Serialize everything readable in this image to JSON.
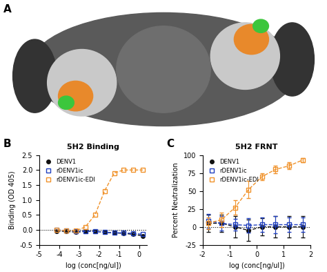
{
  "panel_labels": [
    "A",
    "B",
    "C"
  ],
  "chart_data": [
    {
      "type": "line",
      "title": "5H2 Binding",
      "x_label": "log (conc[ng/ul])",
      "y_label": "Binding (OD 405)",
      "x": [
        -4.12,
        -3.64,
        -3.16,
        -2.69,
        -2.21,
        -1.73,
        -1.25,
        -0.78,
        -0.3,
        0.18
      ],
      "xlim": [
        -5,
        0.4
      ],
      "xticks": [
        -5,
        -4,
        -3,
        -2,
        -1,
        0
      ],
      "ylim": [
        -0.5,
        2.5
      ],
      "yticks": [
        {
          "value": -0.5,
          "label": "-0.5"
        },
        {
          "value": 0,
          "label": "0.0"
        },
        {
          "value": 0.5,
          "label": "0.5"
        },
        {
          "value": 1,
          "label": "1.0"
        },
        {
          "value": 1.5,
          "label": "1.5"
        },
        {
          "value": 2,
          "label": "2.0"
        },
        {
          "value": 2.5,
          "label": "2.5"
        }
      ],
      "hline": 0,
      "legend": "upper left",
      "series": [
        {
          "name": "DENV1",
          "color": "#111111",
          "marker": "filled_circle",
          "line_style": "dashed",
          "values": [
            -0.05,
            -0.05,
            -0.08,
            -0.05,
            -0.05,
            -0.08,
            -0.1,
            -0.12,
            -0.15,
            -0.2
          ]
        },
        {
          "name": "rDENV1ic",
          "color": "#1f3fbf",
          "marker": "open_square",
          "line_style": "dashed",
          "values": [
            0.0,
            -0.03,
            -0.05,
            -0.05,
            -0.05,
            -0.08,
            -0.1,
            -0.1,
            -0.12,
            -0.15
          ]
        },
        {
          "name": "rDENV1ic-EDI",
          "color": "#f0922a",
          "marker": "open_square",
          "line_style": "dashed",
          "values": [
            0.0,
            -0.03,
            -0.03,
            0.1,
            0.5,
            1.3,
            1.9,
            2.0,
            2.0,
            2.0
          ]
        }
      ]
    },
    {
      "type": "line",
      "title": "5H2 FRNT",
      "x_label": "log (conc[ng/ul])",
      "y_label": "Percent Neutralization",
      "x": [
        -1.8,
        -1.3,
        -0.8,
        -0.3,
        0.2,
        0.7,
        1.2,
        1.7
      ],
      "xlim": [
        -2,
        2
      ],
      "xticks": [
        -2,
        -1,
        0,
        1,
        2
      ],
      "ylim": [
        -25,
        100
      ],
      "yticks": [
        -25,
        0,
        25,
        50,
        75,
        100
      ],
      "hline": 0,
      "legend": "upper left",
      "series": [
        {
          "name": "DENV1",
          "color": "#111111",
          "marker": "filled_circle",
          "line_style": "dashed",
          "values": [
            5,
            5,
            0,
            -5,
            0,
            0,
            0,
            0
          ],
          "error": [
            12,
            12,
            15,
            15,
            12,
            15,
            15,
            15
          ]
        },
        {
          "name": "rDENV1ic",
          "color": "#1f3fbf",
          "marker": "open_square",
          "line_style": "dashed",
          "values": [
            8,
            5,
            3,
            2,
            3,
            3,
            3,
            3
          ],
          "error": [
            10,
            10,
            8,
            10,
            10,
            12,
            10,
            10
          ]
        },
        {
          "name": "rDENV1ic-EDI",
          "color": "#f0922a",
          "marker": "open_square",
          "line_style": "dashed",
          "values": [
            5,
            10,
            27,
            52,
            70,
            80,
            85,
            93
          ],
          "error": [
            8,
            10,
            10,
            12,
            5,
            5,
            5,
            3
          ]
        }
      ]
    }
  ]
}
